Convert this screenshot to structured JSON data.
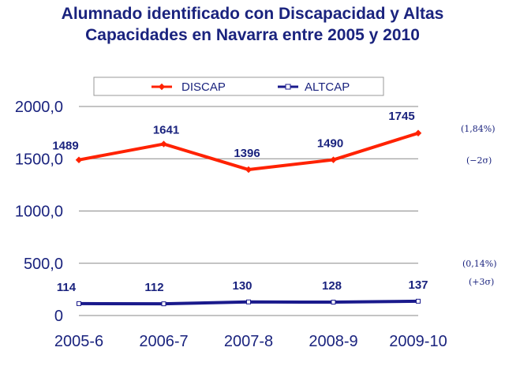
{
  "title_line1": "Alumnado identificado con Discapacidad y Altas",
  "title_line2": "Capacidades en Navarra entre 2005 y 2010",
  "chart_data": {
    "type": "line",
    "title": "Alumnado identificado con Discapacidad y Altas Capacidades en Navarra entre 2005 y 2010",
    "categories": [
      "2005-6",
      "2006-7",
      "2007-8",
      "2008-9",
      "2009-10"
    ],
    "series": [
      {
        "name": "DISCAP",
        "values": [
          1489,
          1641,
          1396,
          1490,
          1745
        ],
        "color": "#ff2200",
        "labels": [
          "1489",
          "1641",
          "1396",
          "1490",
          "1745"
        ]
      },
      {
        "name": "ALTCAP",
        "values": [
          114,
          112,
          130,
          128,
          137
        ],
        "color": "#1a1a8c",
        "labels": [
          "114",
          "112",
          "130",
          "128",
          "137"
        ]
      }
    ],
    "ylim": [
      0,
      2000
    ],
    "yticks": [
      0,
      500,
      1000,
      1500,
      2000
    ],
    "ytick_labels": [
      "0",
      "500,0",
      "1000,0",
      "1500,0",
      "2000,0"
    ],
    "grid": true,
    "legend": "top-center",
    "annotations": [
      "(1,84%)",
      "(−2σ)",
      "(0,14%)",
      "(+3σ)"
    ]
  }
}
